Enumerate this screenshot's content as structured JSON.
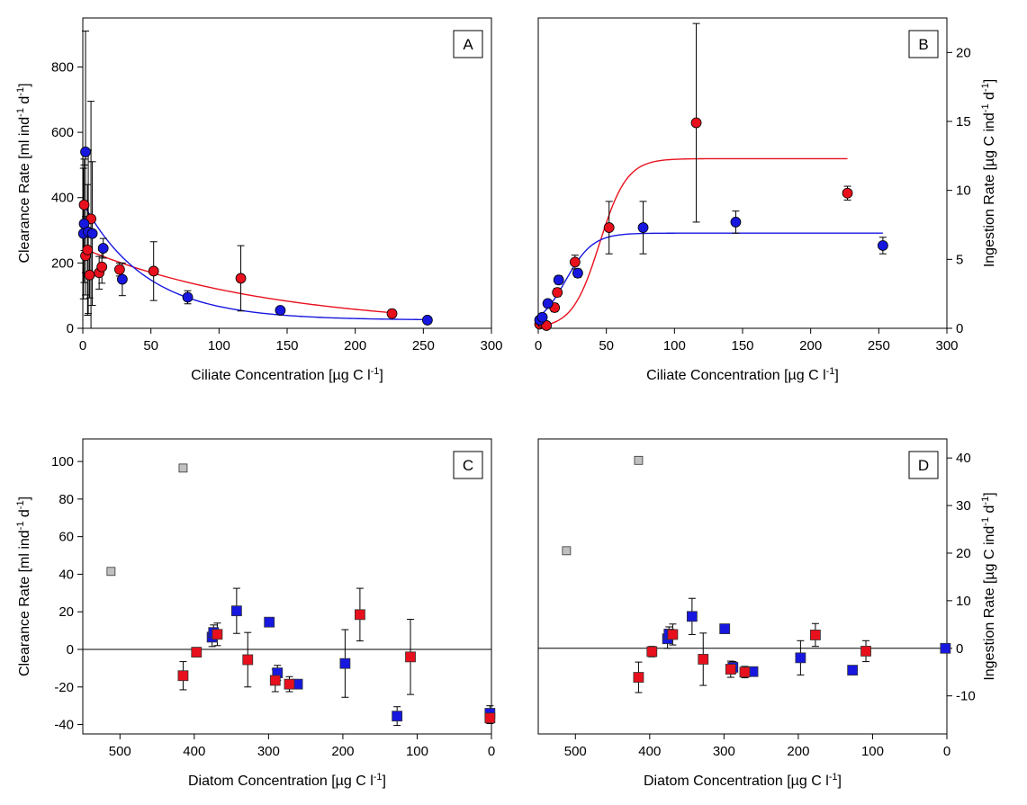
{
  "chart_data": [
    {
      "panel": "A",
      "type": "scatter",
      "xlabel": "Ciliate Concentration [µg C l-1]",
      "ylabel": "Clearance Rate [ml ind-1 d-1]",
      "xlim": [
        0,
        300
      ],
      "ylim": [
        0,
        950
      ],
      "xticks": [
        0,
        50,
        100,
        150,
        200,
        250,
        300
      ],
      "yticks": [
        0,
        200,
        400,
        600,
        800
      ],
      "series": [
        {
          "color": "#e8101c",
          "marker": "circle",
          "points": [
            {
              "x": 1,
              "y": 378,
              "err": 140
            },
            {
              "x": 2,
              "y": 222,
              "err": 120
            },
            {
              "x": 3.5,
              "y": 240,
              "err": 200
            },
            {
              "x": 5,
              "y": 163,
              "err": 70
            },
            {
              "x": 6,
              "y": 335,
              "err": 360
            },
            {
              "x": 12,
              "y": 170,
              "err": 50
            },
            {
              "x": 14,
              "y": 188,
              "err": 50
            },
            {
              "x": 27,
              "y": 180,
              "err": 20
            },
            {
              "x": 52,
              "y": 175,
              "err": 90
            },
            {
              "x": 116,
              "y": 153,
              "err": 100
            },
            {
              "x": 227,
              "y": 45,
              "err": 12
            }
          ],
          "fit": {
            "type": "exp",
            "a": 245,
            "b": 0.0072,
            "xmin": 0,
            "xmax": 227
          }
        },
        {
          "color": "#1717e0",
          "marker": "circle",
          "points": [
            {
              "x": 0.5,
              "y": 290,
              "err": 200
            },
            {
              "x": 1,
              "y": 320,
              "err": 180
            },
            {
              "x": 2,
              "y": 540,
              "err": 370
            },
            {
              "x": 4,
              "y": 295,
              "err": 250
            },
            {
              "x": 7,
              "y": 290,
              "err": 220
            },
            {
              "x": 15,
              "y": 245,
              "err": 30
            },
            {
              "x": 29,
              "y": 150,
              "err": 50
            },
            {
              "x": 77,
              "y": 95,
              "err": 20
            },
            {
              "x": 145,
              "y": 55,
              "err": 8
            },
            {
              "x": 253,
              "y": 25,
              "err": 5
            }
          ],
          "fit": {
            "type": "exp",
            "a": 360,
            "b": 0.0215,
            "c": 25,
            "xmin": 0,
            "xmax": 253
          }
        }
      ]
    },
    {
      "panel": "B",
      "type": "scatter",
      "xlabel": "Ciliate Concentration [µg C l-1]",
      "ylabel": "Ingestion Rate [µg C ind-1 d-1]",
      "xlim": [
        0,
        300
      ],
      "ylim": [
        0,
        22.5
      ],
      "xticks": [
        0,
        50,
        100,
        150,
        200,
        250,
        300
      ],
      "yticks": [
        0,
        5,
        10,
        15,
        20
      ],
      "series": [
        {
          "color": "#e8101c",
          "marker": "circle",
          "points": [
            {
              "x": 1,
              "y": 0.3,
              "err": 0
            },
            {
              "x": 3,
              "y": 0.4,
              "err": 0
            },
            {
              "x": 6,
              "y": 0.2,
              "err": 0
            },
            {
              "x": 12,
              "y": 1.5,
              "err": 0.3
            },
            {
              "x": 14,
              "y": 2.6,
              "err": 0.3
            },
            {
              "x": 27,
              "y": 4.8,
              "err": 0.5
            },
            {
              "x": 52,
              "y": 7.3,
              "err": 1.9
            },
            {
              "x": 116,
              "y": 14.9,
              "err": 7.2
            },
            {
              "x": 227,
              "y": 9.8,
              "err": 0.5
            }
          ],
          "fit": {
            "type": "sigmoid",
            "a": 12.3,
            "x0": 45,
            "k": 0.1,
            "xmin": 0,
            "xmax": 227
          }
        },
        {
          "color": "#1717e0",
          "marker": "circle",
          "points": [
            {
              "x": 1,
              "y": 0.6,
              "err": 0
            },
            {
              "x": 3,
              "y": 0.8,
              "err": 0
            },
            {
              "x": 7,
              "y": 1.8,
              "err": 0
            },
            {
              "x": 15,
              "y": 3.5,
              "err": 0.3
            },
            {
              "x": 29,
              "y": 4.0,
              "err": 0.3
            },
            {
              "x": 77,
              "y": 7.3,
              "err": 1.9
            },
            {
              "x": 145,
              "y": 7.7,
              "err": 0.8
            },
            {
              "x": 253,
              "y": 6.0,
              "err": 0.6
            }
          ],
          "fit": {
            "type": "sigmoid",
            "a": 6.9,
            "x0": 20,
            "k": 0.1,
            "xmin": 0,
            "xmax": 253
          }
        }
      ]
    },
    {
      "panel": "C",
      "type": "scatter",
      "xlabel": "Diatom Concentration [µg C l-1]",
      "ylabel": "Clearance Rate [ml ind-1 d-1]",
      "xlim": [
        550,
        0
      ],
      "ylim": [
        -45,
        112
      ],
      "xticks": [
        500,
        400,
        300,
        200,
        100,
        0
      ],
      "yticks": [
        -40,
        -20,
        0,
        20,
        40,
        60,
        80,
        100
      ],
      "hline": 0,
      "series": [
        {
          "color": "#c0c0c0",
          "marker": "square",
          "points": [
            {
              "x": 512,
              "y": 41.5,
              "err": 0
            },
            {
              "x": 415,
              "y": 96.5,
              "err": 0
            }
          ]
        },
        {
          "color": "#1717e0",
          "marker": "square",
          "points": [
            {
              "x": 376,
              "y": 6.5,
              "err": 5
            },
            {
              "x": 374,
              "y": 9,
              "err": 4
            },
            {
              "x": 343,
              "y": 20.5,
              "err": 12
            },
            {
              "x": 299,
              "y": 14.5,
              "err": 0
            },
            {
              "x": 288,
              "y": -12.5,
              "err": 4
            },
            {
              "x": 261,
              "y": -18.5,
              "err": 0
            },
            {
              "x": 197,
              "y": -7.5,
              "err": 18
            },
            {
              "x": 127,
              "y": -35.5,
              "err": 5
            },
            {
              "x": 2,
              "y": -34,
              "err": 4
            }
          ]
        },
        {
          "color": "#e8101c",
          "marker": "square",
          "points": [
            {
              "x": 415,
              "y": -14,
              "err": 7.5
            },
            {
              "x": 397,
              "y": -1.5,
              "err": 2.5
            },
            {
              "x": 369,
              "y": 8,
              "err": 6
            },
            {
              "x": 328,
              "y": -5.5,
              "err": 14.5
            },
            {
              "x": 291,
              "y": -16.5,
              "err": 6
            },
            {
              "x": 272,
              "y": -18.5,
              "err": 4
            },
            {
              "x": 177,
              "y": 18.5,
              "err": 14
            },
            {
              "x": 109,
              "y": -4,
              "err": 20
            },
            {
              "x": 2,
              "y": -36.5,
              "err": 3
            }
          ]
        }
      ]
    },
    {
      "panel": "D",
      "type": "scatter",
      "xlabel": "Diatom Concentration [µg C l-1]",
      "ylabel": "Ingestion Rate [µg C ind-1 d-1]",
      "xlim": [
        550,
        0
      ],
      "ylim": [
        -18,
        44
      ],
      "xticks": [
        500,
        400,
        300,
        200,
        100,
        0
      ],
      "yticks": [
        -10,
        0,
        10,
        20,
        30,
        40
      ],
      "hline": 0,
      "series": [
        {
          "color": "#c0c0c0",
          "marker": "square",
          "points": [
            {
              "x": 512,
              "y": 20.5,
              "err": 0
            },
            {
              "x": 415,
              "y": 39.5,
              "err": 0
            }
          ]
        },
        {
          "color": "#1717e0",
          "marker": "square",
          "points": [
            {
              "x": 376,
              "y": 2,
              "err": 2
            },
            {
              "x": 374,
              "y": 3,
              "err": 1.5
            },
            {
              "x": 343,
              "y": 6.7,
              "err": 3.8
            },
            {
              "x": 299,
              "y": 4.1,
              "err": 0
            },
            {
              "x": 288,
              "y": -4,
              "err": 1.2
            },
            {
              "x": 261,
              "y": -4.9,
              "err": 0
            },
            {
              "x": 197,
              "y": -2,
              "err": 3.6
            },
            {
              "x": 127,
              "y": -4.6,
              "err": 0
            },
            {
              "x": 2,
              "y": 0,
              "err": 0
            }
          ]
        },
        {
          "color": "#e8101c",
          "marker": "square",
          "points": [
            {
              "x": 415,
              "y": -6.1,
              "err": 3.2
            },
            {
              "x": 397,
              "y": -0.7,
              "err": 1.1
            },
            {
              "x": 369,
              "y": 2.9,
              "err": 2.2
            },
            {
              "x": 328,
              "y": -2.3,
              "err": 5.5
            },
            {
              "x": 291,
              "y": -4.4,
              "err": 1.7
            },
            {
              "x": 272,
              "y": -5,
              "err": 1.2
            },
            {
              "x": 177,
              "y": 2.8,
              "err": 2.4
            },
            {
              "x": 109,
              "y": -0.6,
              "err": 2.2
            }
          ]
        }
      ]
    }
  ]
}
